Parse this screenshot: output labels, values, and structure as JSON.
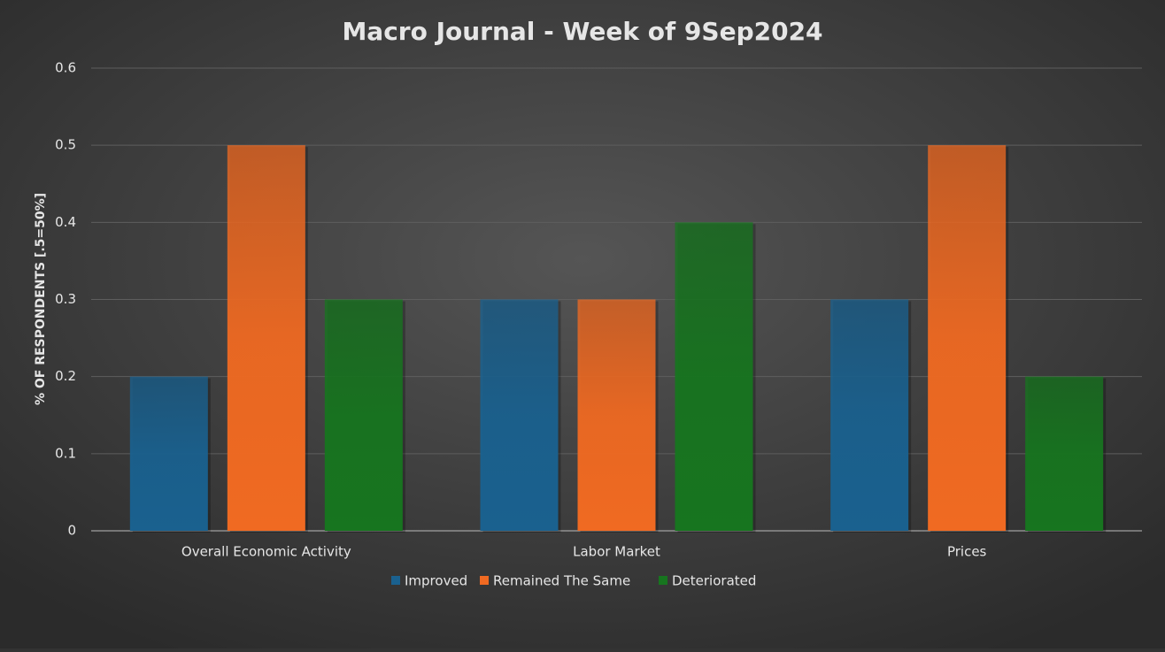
{
  "chart_data": {
    "type": "bar",
    "title": "Macro Journal - Week of 9Sep2024",
    "y_label": "% OF RESPONDENTS [.5=50%]",
    "categories": [
      "Overall Economic Activity",
      "Labor Market",
      "Prices"
    ],
    "series": [
      {
        "name": "Improved",
        "color": "#1a618f",
        "values": [
          0.2,
          0.3,
          0.3
        ]
      },
      {
        "name": "Remained The Same",
        "color": "#f06a22",
        "values": [
          0.5,
          0.3,
          0.5
        ]
      },
      {
        "name": "Deteriorated",
        "color": "#17751f",
        "values": [
          0.3,
          0.4,
          0.2
        ]
      }
    ],
    "ylim": [
      0,
      0.6
    ],
    "yticks": [
      0,
      0.1,
      0.2,
      0.3,
      0.4,
      0.5,
      0.6
    ],
    "grid": true,
    "legend": "bottom"
  }
}
